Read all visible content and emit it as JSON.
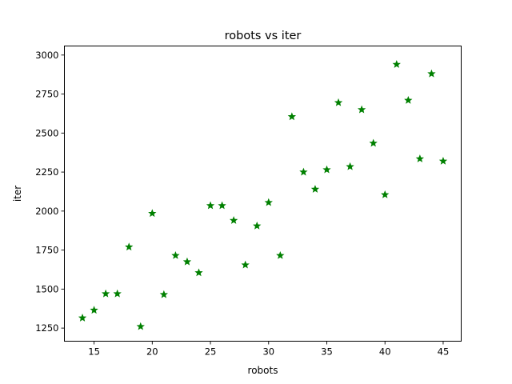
{
  "chart_data": {
    "type": "scatter",
    "title": "robots vs iter",
    "xlabel": "robots",
    "ylabel": "iter",
    "xlim": [
      12.45,
      46.55
    ],
    "ylim": [
      1166,
      3058
    ],
    "xticks": [
      15,
      20,
      25,
      30,
      35,
      40,
      45
    ],
    "yticks": [
      1250,
      1500,
      1750,
      2000,
      2250,
      2500,
      2750,
      3000
    ],
    "marker": "star",
    "color": "#008000",
    "grid": false,
    "series": [
      {
        "x": [
          14,
          15,
          16,
          17,
          18,
          19,
          20,
          21,
          22,
          23,
          24,
          25,
          26,
          27,
          28,
          29,
          30,
          31,
          32,
          33,
          34,
          35,
          36,
          37,
          38,
          39,
          40,
          41,
          42,
          43,
          44,
          45
        ],
        "y": [
          1315,
          1365,
          1470,
          1470,
          1770,
          1260,
          1985,
          1465,
          1715,
          1675,
          1605,
          2035,
          2035,
          1940,
          1655,
          1905,
          2055,
          1715,
          2605,
          2250,
          2140,
          2265,
          2695,
          2285,
          2650,
          2435,
          2105,
          2940,
          2710,
          2335,
          2880,
          2320
        ]
      }
    ]
  }
}
